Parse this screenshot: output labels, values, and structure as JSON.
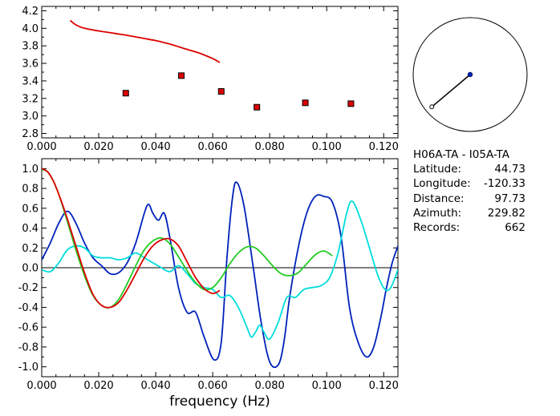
{
  "chart_data": [
    {
      "type": "line",
      "xlim": [
        0.0,
        0.125
      ],
      "ylim": [
        2.75,
        4.25
      ],
      "xticks": [
        "0.000",
        "0.020",
        "0.040",
        "0.060",
        "0.080",
        "0.100",
        "0.120"
      ],
      "yticks": [
        "2.8",
        "3.0",
        "3.2",
        "3.4",
        "3.6",
        "3.8",
        "4.0",
        "4.2"
      ],
      "series": [
        {
          "kind": "line",
          "color": "#dd0000",
          "x": [
            0.01,
            0.012,
            0.015,
            0.02,
            0.025,
            0.03,
            0.035,
            0.04,
            0.045,
            0.05,
            0.055,
            0.06,
            0.0625
          ],
          "y": [
            4.09,
            4.04,
            4.0,
            3.97,
            3.945,
            3.92,
            3.89,
            3.86,
            3.82,
            3.77,
            3.72,
            3.655,
            3.61
          ]
        },
        {
          "kind": "points",
          "color": "#dd0000",
          "x": [
            0.0295,
            0.049,
            0.063,
            0.0755,
            0.0925,
            0.1085
          ],
          "y": [
            3.26,
            3.46,
            3.28,
            3.1,
            3.15,
            3.14
          ]
        }
      ]
    },
    {
      "type": "line",
      "xlim": [
        0.0,
        0.125
      ],
      "ylim": [
        -1.1,
        1.1
      ],
      "xticks": [
        "0.000",
        "0.020",
        "0.040",
        "0.060",
        "0.080",
        "0.100",
        "0.120"
      ],
      "yticks": [
        "1.0",
        "0.8",
        "0.6",
        "0.4",
        "0.2",
        "0.0",
        "-0.2",
        "-0.4",
        "-0.6",
        "-0.8",
        "-1.0"
      ],
      "xlabel": "frequency (Hz)",
      "zero_line": true,
      "series": [
        {
          "color": "#0022bb",
          "x": [
            0.0,
            0.003,
            0.006,
            0.009,
            0.012,
            0.015,
            0.018,
            0.021,
            0.024,
            0.027,
            0.03,
            0.033,
            0.036,
            0.0375,
            0.039,
            0.041,
            0.043,
            0.045,
            0.048,
            0.051,
            0.054,
            0.057,
            0.0605,
            0.063,
            0.065,
            0.067,
            0.0685,
            0.071,
            0.074,
            0.077,
            0.08,
            0.083,
            0.085,
            0.087,
            0.09,
            0.093,
            0.096,
            0.099,
            0.102,
            0.105,
            0.108,
            0.111,
            0.114,
            0.1165,
            0.119,
            0.121,
            0.123,
            0.125
          ],
          "y": [
            0.08,
            0.25,
            0.45,
            0.57,
            0.45,
            0.25,
            0.1,
            0.02,
            -0.06,
            -0.05,
            0.05,
            0.25,
            0.55,
            0.64,
            0.55,
            0.48,
            0.55,
            0.3,
            -0.2,
            -0.45,
            -0.45,
            -0.7,
            -0.93,
            -0.75,
            0.1,
            0.72,
            0.86,
            0.62,
            0.05,
            -0.55,
            -0.95,
            -0.98,
            -0.75,
            -0.3,
            0.2,
            0.55,
            0.72,
            0.72,
            0.66,
            0.32,
            -0.4,
            -0.75,
            -0.9,
            -0.8,
            -0.5,
            -0.2,
            0.05,
            0.22
          ]
        },
        {
          "color": "#00dddd",
          "x": [
            0.0,
            0.003,
            0.006,
            0.009,
            0.012,
            0.015,
            0.018,
            0.021,
            0.024,
            0.027,
            0.03,
            0.033,
            0.036,
            0.039,
            0.042,
            0.045,
            0.048,
            0.051,
            0.054,
            0.057,
            0.06,
            0.063,
            0.066,
            0.069,
            0.072,
            0.0735,
            0.075,
            0.0765,
            0.078,
            0.08,
            0.083,
            0.086,
            0.089,
            0.092,
            0.095,
            0.098,
            0.101,
            0.104,
            0.107,
            0.109,
            0.112,
            0.115,
            0.118,
            0.1205,
            0.1225,
            0.125
          ],
          "y": [
            -0.02,
            -0.04,
            0.05,
            0.18,
            0.22,
            0.2,
            0.12,
            0.1,
            0.1,
            0.08,
            0.1,
            0.15,
            0.1,
            0.05,
            0.0,
            -0.04,
            0.02,
            -0.06,
            -0.16,
            -0.2,
            -0.22,
            -0.3,
            -0.28,
            -0.4,
            -0.6,
            -0.7,
            -0.65,
            -0.58,
            -0.65,
            -0.72,
            -0.55,
            -0.3,
            -0.3,
            -0.22,
            -0.2,
            -0.18,
            -0.1,
            0.15,
            0.55,
            0.67,
            0.48,
            0.2,
            -0.08,
            -0.22,
            -0.2,
            -0.02
          ]
        },
        {
          "color": "#22cc22",
          "x": [
            0.0,
            0.002,
            0.004,
            0.006,
            0.008,
            0.01,
            0.012,
            0.015,
            0.018,
            0.021,
            0.024,
            0.027,
            0.03,
            0.033,
            0.036,
            0.039,
            0.042,
            0.045,
            0.048,
            0.051,
            0.054,
            0.057,
            0.06,
            0.063,
            0.066,
            0.069,
            0.072,
            0.075,
            0.078,
            0.081,
            0.084,
            0.087,
            0.09,
            0.093,
            0.096,
            0.099,
            0.102
          ],
          "y": [
            0.99,
            0.97,
            0.88,
            0.74,
            0.56,
            0.37,
            0.18,
            -0.08,
            -0.28,
            -0.38,
            -0.4,
            -0.32,
            -0.16,
            0.02,
            0.18,
            0.27,
            0.3,
            0.24,
            0.11,
            -0.03,
            -0.15,
            -0.22,
            -0.2,
            -0.1,
            0.04,
            0.15,
            0.21,
            0.2,
            0.12,
            0.02,
            -0.06,
            -0.08,
            -0.05,
            0.04,
            0.13,
            0.17,
            0.12
          ]
        },
        {
          "color": "#dd0000",
          "x": [
            0.0,
            0.002,
            0.004,
            0.006,
            0.008,
            0.01,
            0.012,
            0.015,
            0.018,
            0.021,
            0.024,
            0.027,
            0.03,
            0.033,
            0.036,
            0.039,
            0.042,
            0.045,
            0.048,
            0.051,
            0.054,
            0.057,
            0.06,
            0.0625
          ],
          "y": [
            1.0,
            0.97,
            0.88,
            0.74,
            0.58,
            0.4,
            0.22,
            -0.05,
            -0.27,
            -0.38,
            -0.4,
            -0.35,
            -0.22,
            -0.06,
            0.1,
            0.22,
            0.28,
            0.29,
            0.22,
            0.06,
            -0.1,
            -0.21,
            -0.26,
            -0.23
          ]
        }
      ]
    },
    {
      "type": "diagram",
      "azimuth_deg": 229.82,
      "colors": {
        "circle": "#000000",
        "center_dot": "#0022bb",
        "line": "#000000"
      }
    }
  ],
  "info": {
    "title": "H06A-TA  -  I05A-TA",
    "rows": [
      {
        "label": "Latitude:",
        "value": "44.73"
      },
      {
        "label": "Longitude:",
        "value": "-120.33"
      },
      {
        "label": "Distance:",
        "value": "97.73"
      },
      {
        "label": "Azimuth:",
        "value": "229.82"
      },
      {
        "label": "Records:",
        "value": "662"
      }
    ]
  }
}
